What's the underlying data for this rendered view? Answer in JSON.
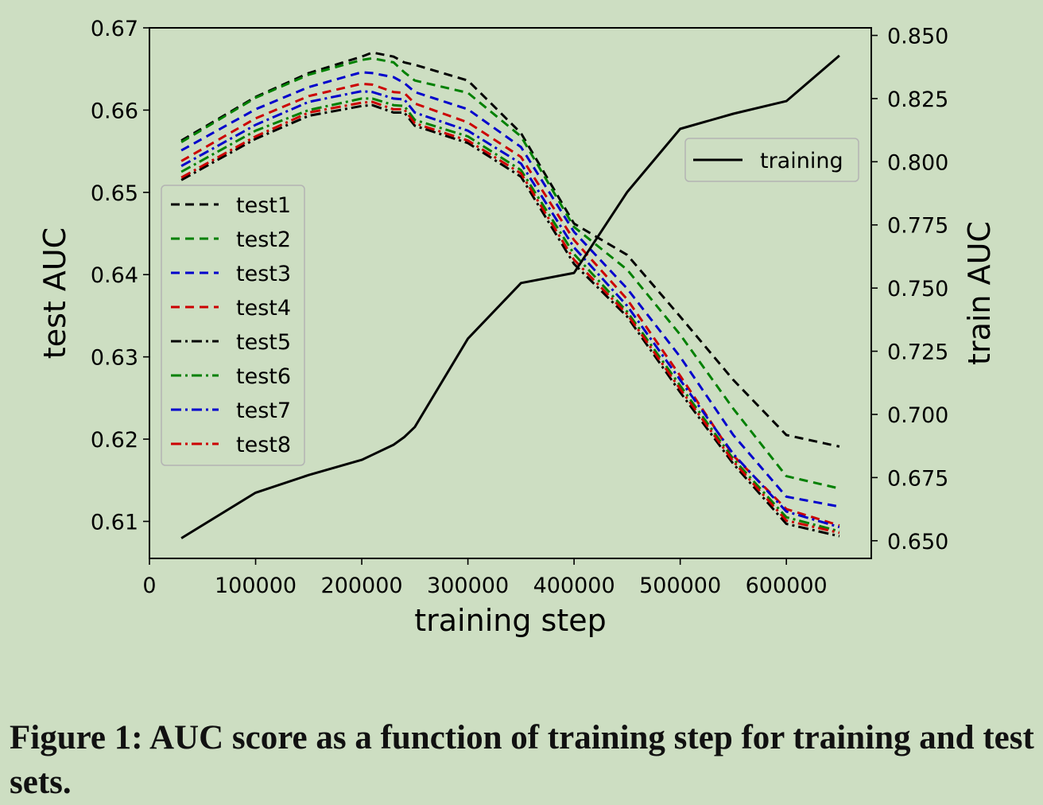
{
  "caption": "Figure 1: AUC score as a function of training step for training and test sets.",
  "chart_data": {
    "type": "line",
    "xlabel": "training step",
    "ylabel_left": "test AUC",
    "ylabel_right": "train AUC",
    "xlim": [
      0,
      680000
    ],
    "ylim_left": [
      0.6055,
      0.67
    ],
    "ylim_right": [
      0.643,
      0.853
    ],
    "xticks": [
      0,
      100000,
      200000,
      300000,
      400000,
      500000,
      600000
    ],
    "yticks_left": [
      "0.61",
      "0.62",
      "0.63",
      "0.64",
      "0.65",
      "0.66",
      "0.67"
    ],
    "yticks_right": [
      "0.650",
      "0.675",
      "0.700",
      "0.725",
      "0.750",
      "0.775",
      "0.800",
      "0.825",
      "0.850"
    ],
    "grid": false,
    "legend_left_position": "center-left",
    "legend_right_position": "upper-right",
    "x": [
      30000,
      100000,
      150000,
      200000,
      210000,
      230000,
      240000,
      250000,
      300000,
      350000,
      400000,
      450000,
      500000,
      550000,
      600000,
      650000
    ],
    "series": [
      {
        "name": "test1",
        "axis": "left",
        "style": "dashed",
        "color": "#000000",
        "values": [
          0.6563,
          0.6616,
          0.6645,
          0.6665,
          0.667,
          0.6665,
          0.6658,
          0.6655,
          0.6636,
          0.6572,
          0.6462,
          0.6424,
          0.6349,
          0.6272,
          0.6205,
          0.6191
        ]
      },
      {
        "name": "test2",
        "axis": "left",
        "style": "dashed",
        "color": "#008000",
        "values": [
          0.6561,
          0.6615,
          0.6643,
          0.6661,
          0.6663,
          0.6658,
          0.6646,
          0.6636,
          0.6621,
          0.6568,
          0.6458,
          0.6406,
          0.6327,
          0.6237,
          0.6155,
          0.614
        ]
      },
      {
        "name": "test3",
        "axis": "left",
        "style": "dashed",
        "color": "#0000cc",
        "values": [
          0.6551,
          0.6601,
          0.6628,
          0.6646,
          0.6645,
          0.664,
          0.6633,
          0.6622,
          0.6601,
          0.6555,
          0.6452,
          0.6383,
          0.63,
          0.6205,
          0.613,
          0.6118
        ]
      },
      {
        "name": "test4",
        "axis": "left",
        "style": "dashed",
        "color": "#cc0000",
        "values": [
          0.6538,
          0.659,
          0.6617,
          0.6632,
          0.6631,
          0.6622,
          0.6621,
          0.6608,
          0.6585,
          0.6543,
          0.6442,
          0.637,
          0.6277,
          0.618,
          0.6115,
          0.6095
        ]
      },
      {
        "name": "test5",
        "axis": "left",
        "style": "dashdot",
        "color": "#000000",
        "values": [
          0.6515,
          0.6565,
          0.6593,
          0.6605,
          0.6606,
          0.6597,
          0.6597,
          0.6581,
          0.656,
          0.6519,
          0.6413,
          0.6349,
          0.6257,
          0.617,
          0.6097,
          0.6082
        ]
      },
      {
        "name": "test6",
        "axis": "left",
        "style": "dashdot",
        "color": "#008000",
        "values": [
          0.6525,
          0.6575,
          0.66,
          0.6614,
          0.6614,
          0.6606,
          0.6605,
          0.6588,
          0.6568,
          0.6527,
          0.6425,
          0.6355,
          0.6265,
          0.6176,
          0.6105,
          0.6088
        ]
      },
      {
        "name": "test7",
        "axis": "left",
        "style": "dashdot",
        "color": "#0000cc",
        "values": [
          0.6532,
          0.6582,
          0.661,
          0.6623,
          0.6622,
          0.6614,
          0.6613,
          0.6597,
          0.6575,
          0.6535,
          0.6433,
          0.6362,
          0.6272,
          0.6182,
          0.6112,
          0.6093
        ]
      },
      {
        "name": "test8",
        "axis": "left",
        "style": "dashdot",
        "color": "#cc0000",
        "values": [
          0.6518,
          0.6568,
          0.6597,
          0.6609,
          0.661,
          0.6601,
          0.6601,
          0.6584,
          0.6563,
          0.6523,
          0.6418,
          0.6352,
          0.6261,
          0.6173,
          0.6101,
          0.6086
        ]
      },
      {
        "name": "training",
        "axis": "right",
        "style": "solid",
        "color": "#000000",
        "values": [
          0.651,
          0.669,
          0.676,
          0.682,
          0.684,
          0.688,
          0.691,
          0.695,
          0.73,
          0.752,
          0.756,
          0.788,
          0.813,
          0.819,
          0.824,
          0.842
        ]
      }
    ]
  }
}
